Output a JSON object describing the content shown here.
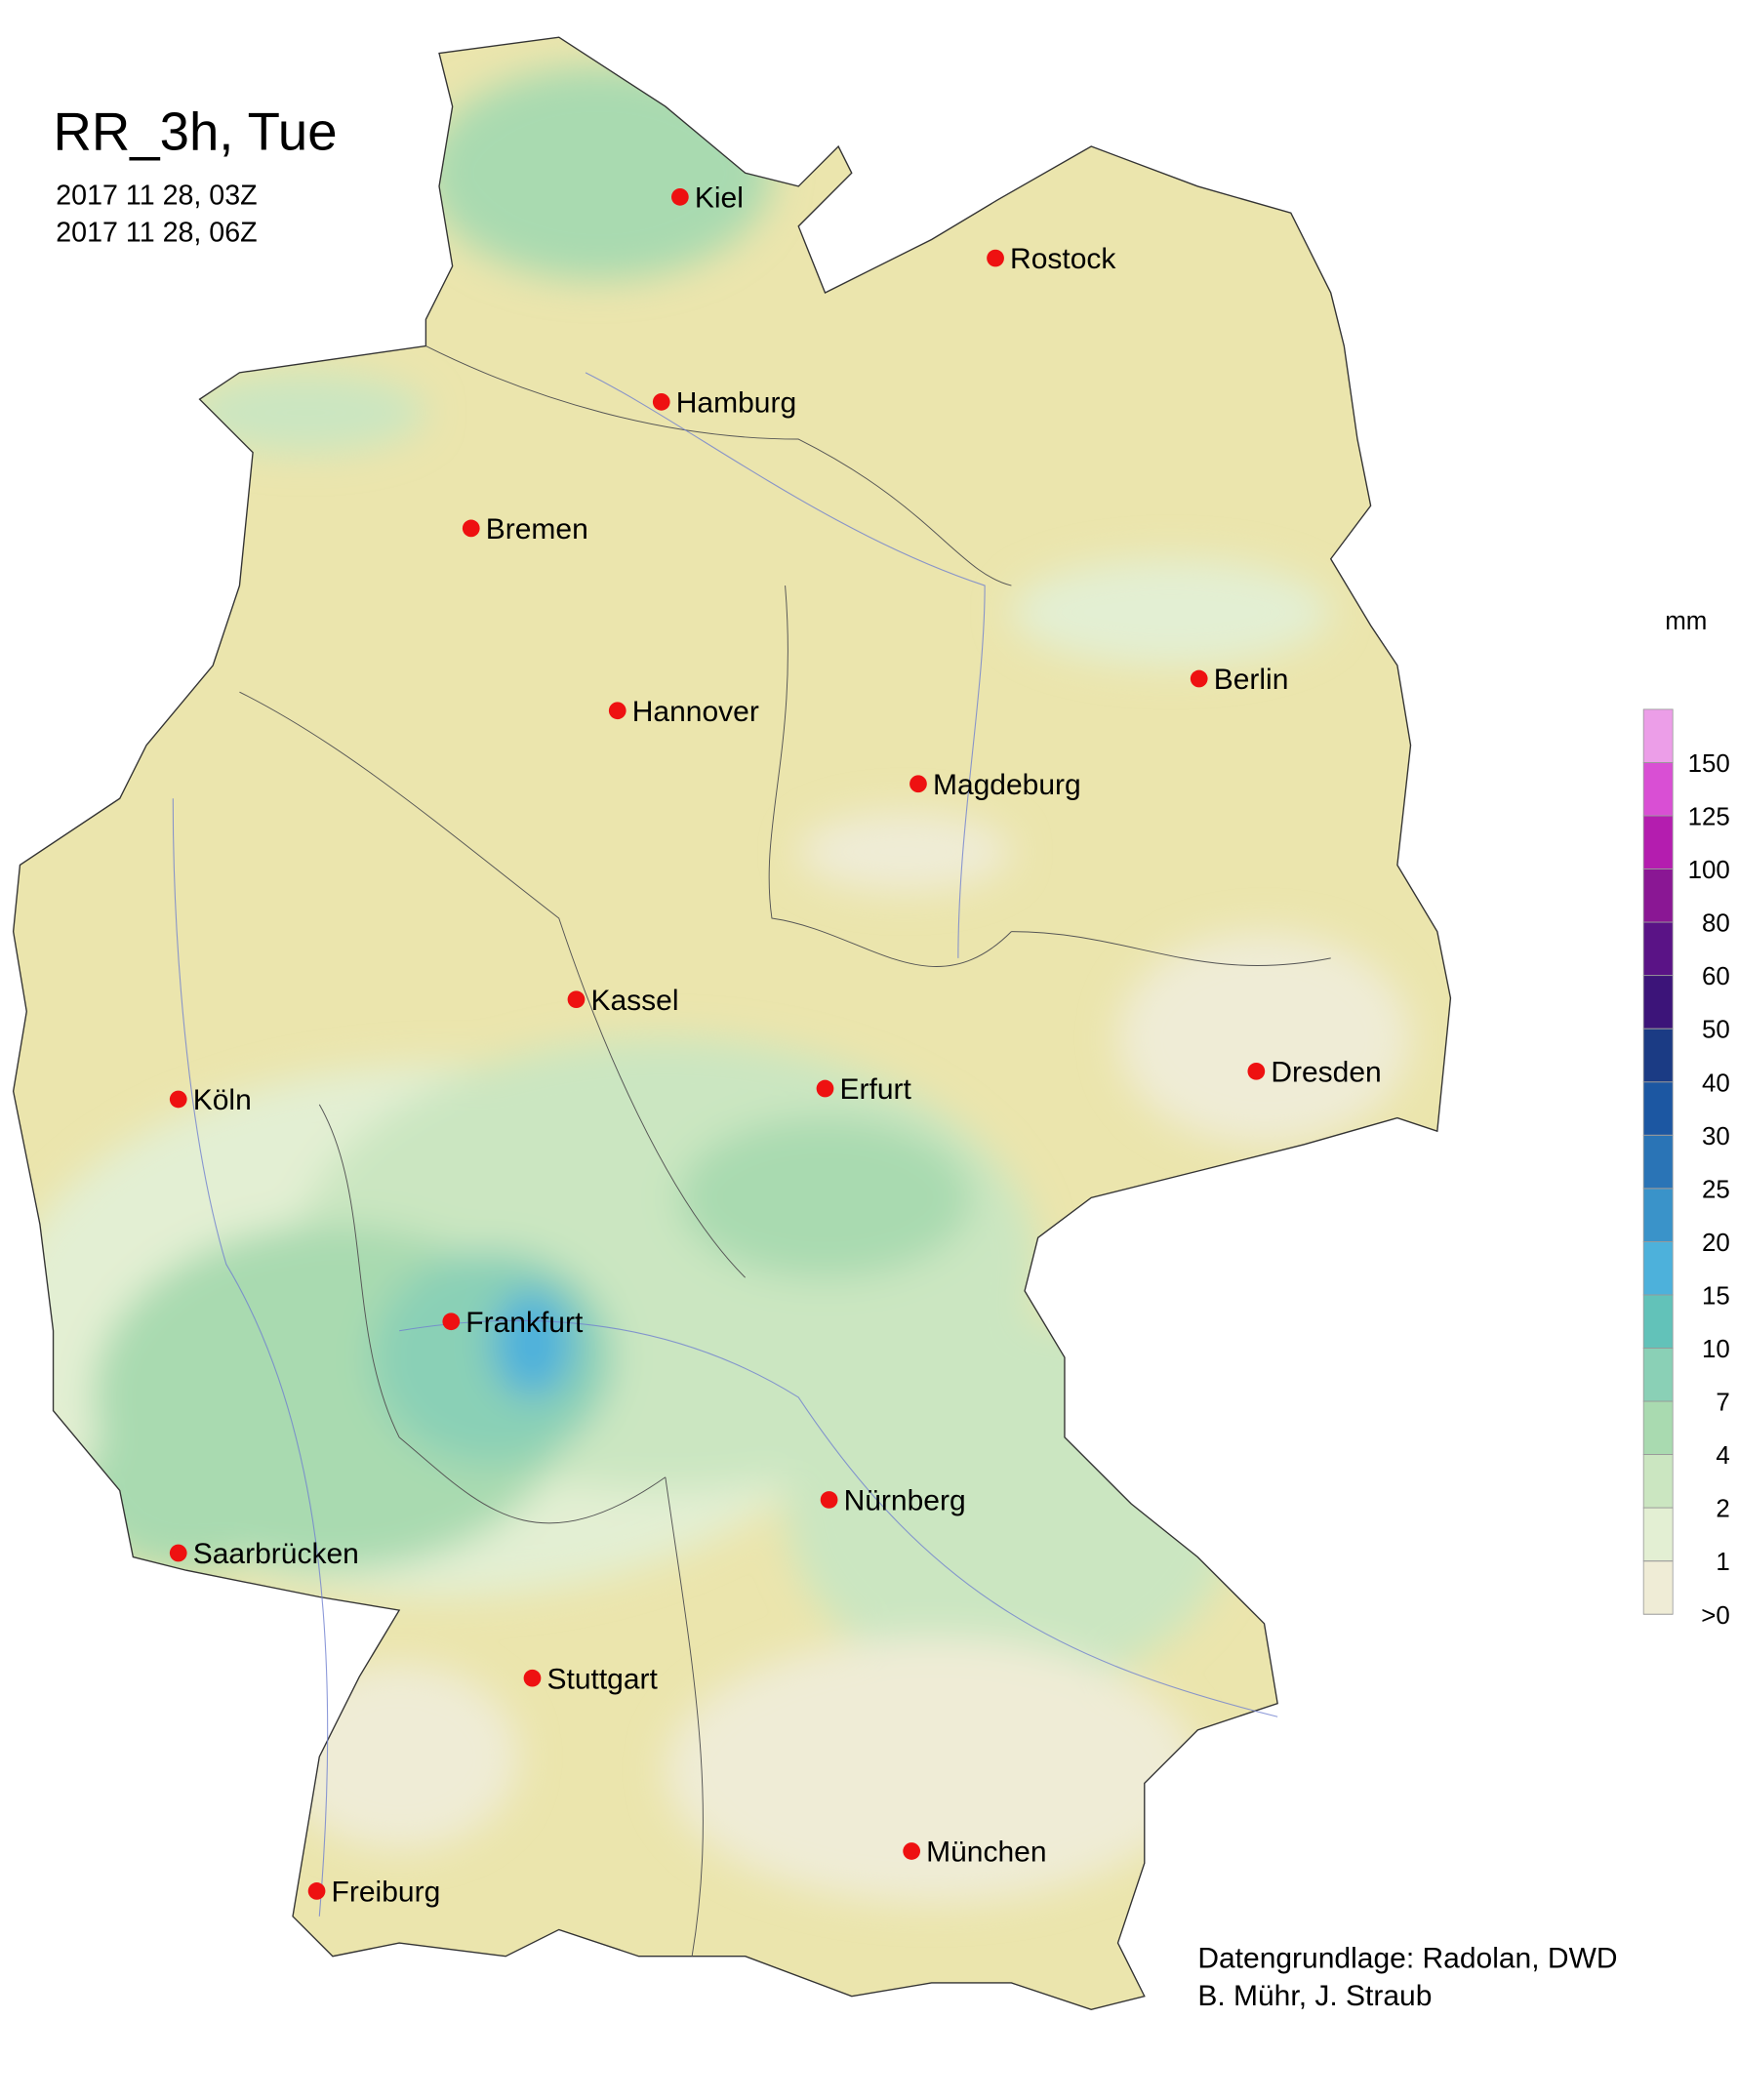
{
  "map": {
    "title": "RR_3h, Tue",
    "valid_from": "2017 11 28, 03Z",
    "valid_to": "2017 11 28, 06Z",
    "cities": [
      "Kiel",
      "Rostock",
      "Hamburg",
      "Bremen",
      "Hannover",
      "Berlin",
      "Magdeburg",
      "Kassel",
      "Köln",
      "Erfurt",
      "Dresden",
      "Frankfurt",
      "Nürnberg",
      "Saarbrücken",
      "Stuttgart",
      "Freiburg",
      "München"
    ],
    "legend": {
      "unit": "mm",
      "levels": [
        {
          "value": 0,
          "label": ">0"
        },
        1,
        2,
        4,
        7,
        10,
        15,
        20,
        25,
        30,
        40,
        50,
        60,
        80,
        100,
        125,
        150
      ],
      "colors": [
        "#efecd6",
        "#e3efd3",
        "#cbe6c1",
        "#a9dab0",
        "#8ad0b6",
        "#62c2b9",
        "#4db1db",
        "#3a93c9",
        "#2a74b6",
        "#1c57a2",
        "#1b3b84",
        "#3c1479",
        "#5a1386",
        "#8a1794",
        "#b41daf",
        "#d94fd4",
        "#ec9ee8"
      ]
    },
    "credits": [
      "Datengrundlage: Radolan, DWD",
      "B. Mühr, J. Straub"
    ]
  }
}
